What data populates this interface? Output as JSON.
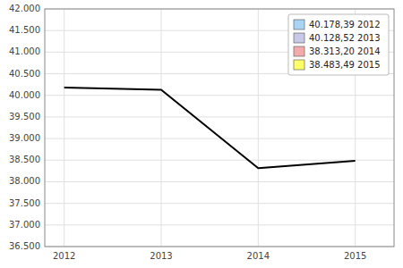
{
  "chart_data": {
    "type": "line",
    "x": [
      2012,
      2013,
      2014,
      2015
    ],
    "values": [
      40178.39,
      40128.52,
      38313.2,
      38483.49
    ],
    "color": "#000000",
    "xlim": [
      2011.8,
      2015.4
    ],
    "ylim": [
      36500,
      42000
    ],
    "xticks": [
      2012,
      2013,
      2014,
      2015
    ],
    "yticks": [
      {
        "value": 36500,
        "label": "36.500"
      },
      {
        "value": 37000,
        "label": "37.000"
      },
      {
        "value": 37500,
        "label": "37.500"
      },
      {
        "value": 38000,
        "label": "38.000"
      },
      {
        "value": 38500,
        "label": "38.500"
      },
      {
        "value": 39000,
        "label": "39.000"
      },
      {
        "value": 39500,
        "label": "39.500"
      },
      {
        "value": 40000,
        "label": "40.000"
      },
      {
        "value": 40500,
        "label": "40.500"
      },
      {
        "value": 41000,
        "label": "41.000"
      },
      {
        "value": 41500,
        "label": "41.500"
      },
      {
        "value": 42000,
        "label": "42.000"
      }
    ],
    "grid": true,
    "legend": "upper right",
    "legend_entries": [
      {
        "label": "40.178,39 2012",
        "color": "#aad4f5"
      },
      {
        "label": "40.128,52 2013",
        "color": "#c8c8e8"
      },
      {
        "label": "38.313,20 2014",
        "color": "#f5aaaa"
      },
      {
        "label": "38.483,49 2015",
        "color": "#ffff66"
      }
    ]
  }
}
